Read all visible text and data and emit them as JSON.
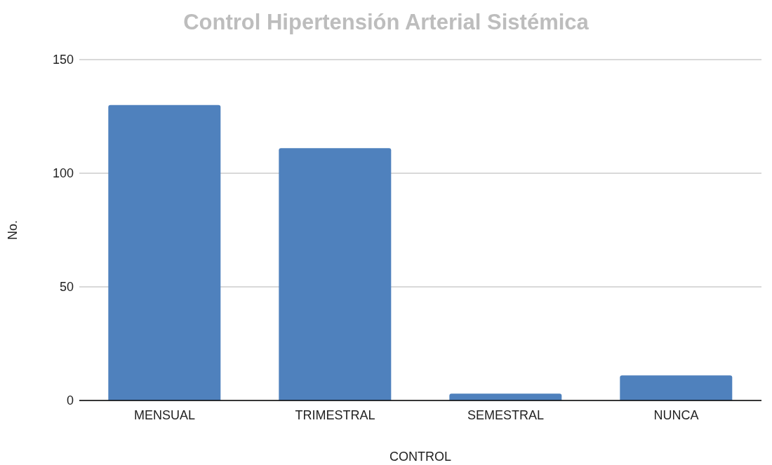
{
  "chart_data": {
    "type": "bar",
    "title": "Control Hipertensión Arterial Sistémica",
    "xlabel": "CONTROL",
    "ylabel": "No.",
    "categories": [
      "MENSUAL",
      "TRIMESTRAL",
      "SEMESTRAL",
      "NUNCA"
    ],
    "values": [
      130,
      111,
      3,
      11
    ],
    "color": "#4f81bd",
    "ylim": [
      0,
      150
    ],
    "yticks": [
      0,
      50,
      100,
      150
    ],
    "grid": "y"
  }
}
